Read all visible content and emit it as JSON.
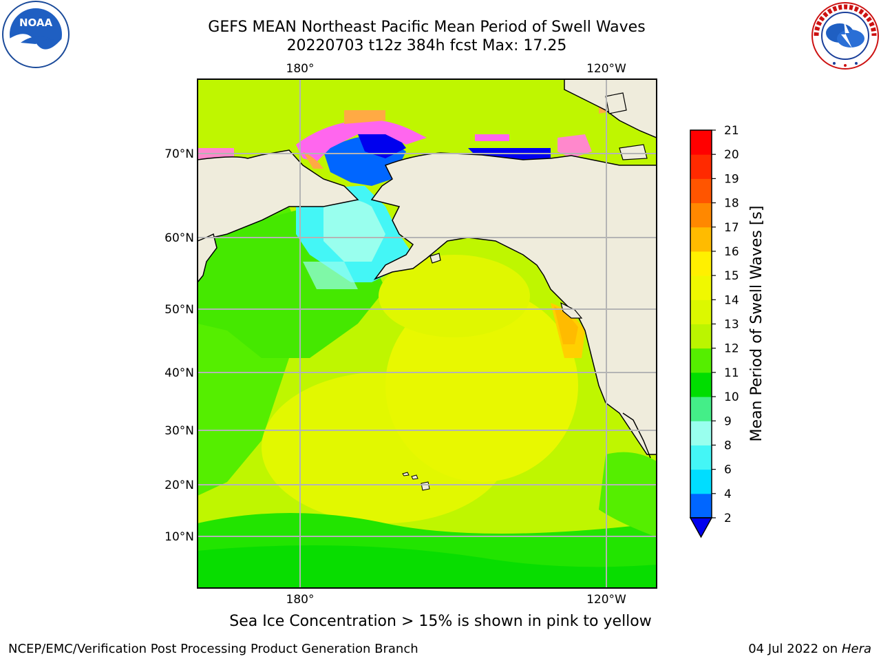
{
  "header": {
    "title_line1": "GEFS MEAN Northeast Pacific Mean Period of Swell Waves",
    "title_line2": "20220703 t12z 384h fcst   Max: 17.25"
  },
  "logos": {
    "left": "noaa-logo",
    "right": "national-weather-service-logo"
  },
  "map": {
    "lon_labels": [
      "180°",
      "120°W"
    ],
    "lat_labels": [
      "70°N",
      "60°N",
      "50°N",
      "40°N",
      "30°N",
      "20°N",
      "10°N"
    ],
    "land_color": "#efecdc",
    "grid_color": "#b4b4b4"
  },
  "colorbar": {
    "label": "Mean Period of Swell Waves [s]",
    "ticks": [
      "2",
      "4",
      "6",
      "8",
      "9",
      "10",
      "11",
      "12",
      "13",
      "14",
      "15",
      "16",
      "17",
      "18",
      "19",
      "20",
      "21"
    ],
    "colors": [
      "#0066ff",
      "#00ddff",
      "#44f6f6",
      "#99ffee",
      "#44ee88",
      "#00dd00",
      "#55ee00",
      "#bbf500",
      "#dcf800",
      "#f0f800",
      "#fff000",
      "#ffbb00",
      "#ff8800",
      "#ff5500",
      "#ff2a00",
      "#ff0000"
    ],
    "under_color": "#0000ee"
  },
  "caption": "Sea Ice Concentration > 15% is shown in pink to yellow",
  "footer": {
    "left": "NCEP/EMC/Verification Post Processing Product Generation Branch",
    "right_date": "04 Jul 2022 on ",
    "right_host": "Hera"
  }
}
